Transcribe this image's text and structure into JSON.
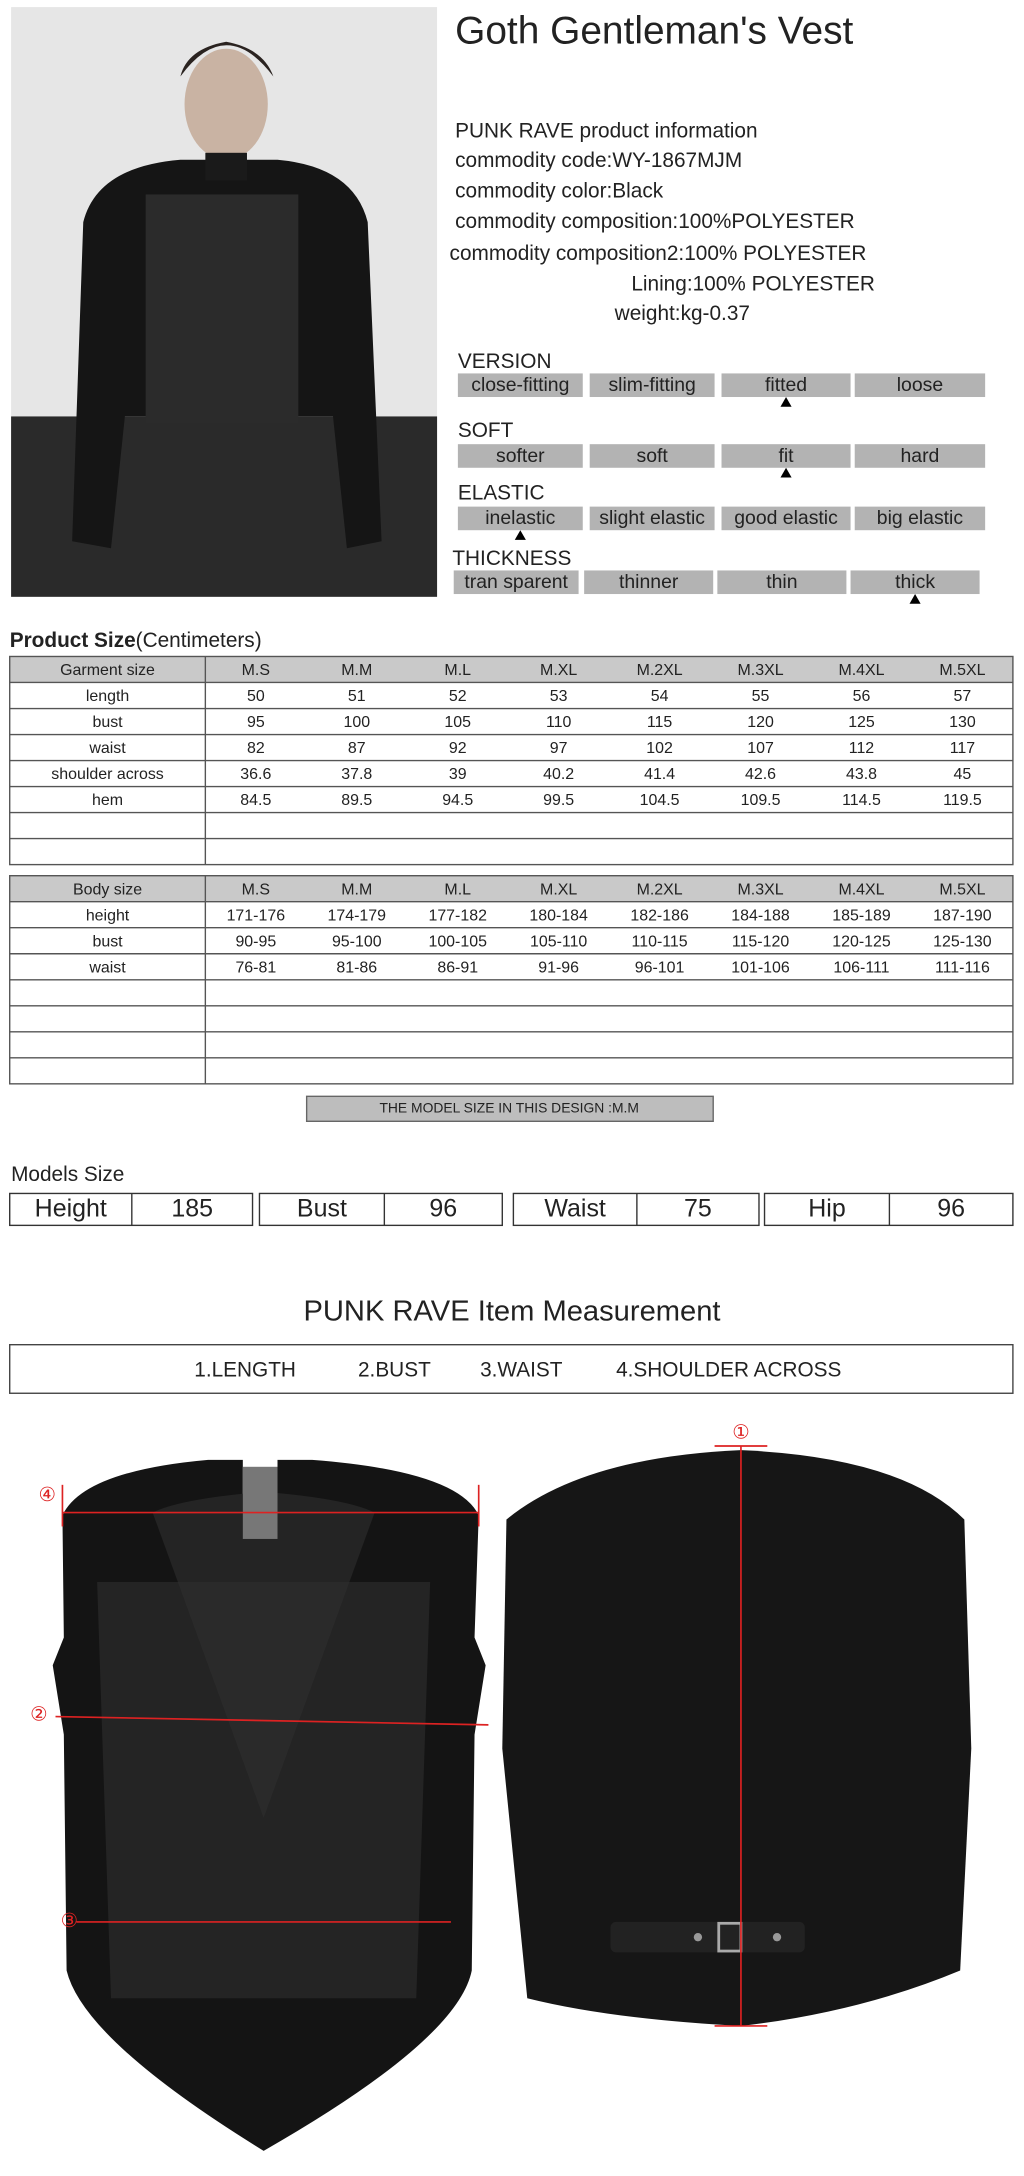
{
  "title": "Goth Gentleman's Vest",
  "info": {
    "heading": "PUNK RAVE product information",
    "lines": [
      {
        "label": "commodity code:",
        "value": "WY-1867MJM"
      },
      {
        "label": "commodity color:",
        "value": "Black"
      },
      {
        "label": "commodity composition:",
        "value": "100%POLYESTER"
      },
      {
        "label": "commodity composition2:",
        "value": "100% POLYESTER"
      },
      {
        "label": "Lining:",
        "value": "100% POLYESTER"
      },
      {
        "label": "weight:",
        "value": "kg-0.37"
      }
    ]
  },
  "attributes": [
    {
      "name": "VERSION",
      "options": [
        "close-fitting",
        "slim-fitting",
        "fitted",
        "loose"
      ],
      "selected": 2
    },
    {
      "name": "SOFT",
      "options": [
        "softer",
        "soft",
        "fit",
        "hard"
      ],
      "selected": 2
    },
    {
      "name": "ELASTIC",
      "options": [
        "inelastic",
        "slight elastic",
        "good elastic",
        "big elastic"
      ],
      "selected": 0
    },
    {
      "name": "THICKNESS",
      "options": [
        "tran sparent",
        "thinner",
        "thin",
        "thick"
      ],
      "selected": 3
    }
  ],
  "product_size": {
    "title": "Product Size",
    "unit": "(Centimeters)",
    "header": [
      "Garment size",
      "M.S",
      "M.M",
      "M.L",
      "M.XL",
      "M.2XL",
      "M.3XL",
      "M.4XL",
      "M.5XL"
    ],
    "rows": [
      [
        "length",
        50,
        51,
        52,
        53,
        54,
        55,
        56,
        57
      ],
      [
        "bust",
        95,
        100,
        105,
        110,
        115,
        120,
        125,
        130
      ],
      [
        "waist",
        82,
        87,
        92,
        97,
        102,
        107,
        112,
        117
      ],
      [
        "shoulder across",
        36.6,
        37.8,
        39,
        40.2,
        41.4,
        42.6,
        43.8,
        45
      ],
      [
        "hem",
        84.5,
        89.5,
        94.5,
        99.5,
        104.5,
        109.5,
        114.5,
        119.5
      ]
    ]
  },
  "body_size": {
    "header": [
      "Body size",
      "M.S",
      "M.M",
      "M.L",
      "M.XL",
      "M.2XL",
      "M.3XL",
      "M.4XL",
      "M.5XL"
    ],
    "rows": [
      [
        "height",
        "171-176",
        "174-179",
        "177-182",
        "180-184",
        "182-186",
        "184-188",
        "185-189",
        "187-190"
      ],
      [
        "bust",
        "90-95",
        "95-100",
        "100-105",
        "105-110",
        "110-115",
        "115-120",
        "120-125",
        "125-130"
      ],
      [
        "waist",
        "76-81",
        "81-86",
        "86-91",
        "91-96",
        "96-101",
        "101-106",
        "106-111",
        "111-116"
      ]
    ]
  },
  "model_note": "THE MODEL SIZE IN THIS DESIGN :M.M",
  "models_size": {
    "title": "Models Size",
    "items": [
      {
        "label": "Height",
        "value": 185
      },
      {
        "label": "Bust",
        "value": 96
      },
      {
        "label": "Waist",
        "value": 75
      },
      {
        "label": "Hip",
        "value": 96
      }
    ]
  },
  "measurement": {
    "title": "PUNK RAVE Item  Measurement",
    "items": [
      "1.LENGTH",
      "2.BUST",
      "3.WAIST",
      "4.SHOULDER ACROSS"
    ],
    "markers": [
      "①",
      "②",
      "③",
      "④"
    ]
  }
}
